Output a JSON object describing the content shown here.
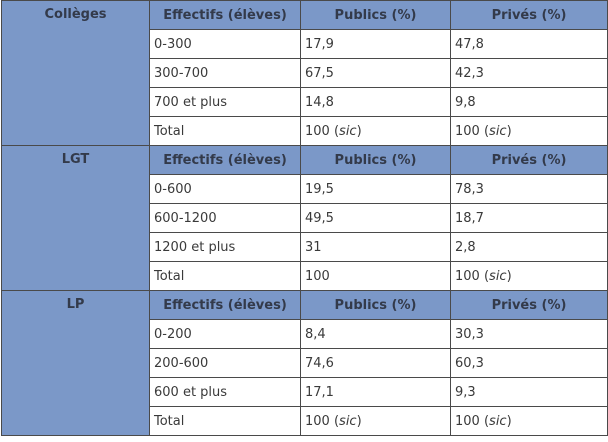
{
  "table": {
    "headers": {
      "effectifs": "Effectifs (élèves)",
      "publics": "Publics (%)",
      "prives": "Privés (%)"
    },
    "groups": [
      {
        "name": "Collèges",
        "rows": [
          {
            "effectifs": "0-300",
            "publics": "17,9",
            "prives": "47,8"
          },
          {
            "effectifs": "300-700",
            "publics": "67,5",
            "prives": "42,3"
          },
          {
            "effectifs": "700 et plus",
            "publics": "14,8",
            "prives": "9,8"
          }
        ],
        "total": {
          "label": "Total",
          "publics": "100",
          "publics_note": "sic",
          "prives": "100",
          "prives_note": "sic"
        }
      },
      {
        "name": "LGT",
        "rows": [
          {
            "effectifs": "0-600",
            "publics": "19,5",
            "prives": "78,3"
          },
          {
            "effectifs": "600-1200",
            "publics": "49,5",
            "prives": "18,7"
          },
          {
            "effectifs": "1200 et plus",
            "publics": "31",
            "prives": "2,8"
          }
        ],
        "total": {
          "label": "Total",
          "publics": "100",
          "publics_note": "",
          "prives": "100",
          "prives_note": "sic"
        }
      },
      {
        "name": "LP",
        "rows": [
          {
            "effectifs": "0-200",
            "publics": "8,4",
            "prives": "30,3"
          },
          {
            "effectifs": "200-600",
            "publics": "74,6",
            "prives": "60,3"
          },
          {
            "effectifs": "600 et plus",
            "publics": "17,1",
            "prives": "9,3"
          }
        ],
        "total": {
          "label": "Total",
          "publics": "100",
          "publics_note": "sic",
          "prives": "100",
          "prives_note": "sic"
        }
      }
    ]
  },
  "colors": {
    "header_bg": "#7b98c8",
    "border": "#4a4a4a",
    "text": "#3a3a3a"
  }
}
